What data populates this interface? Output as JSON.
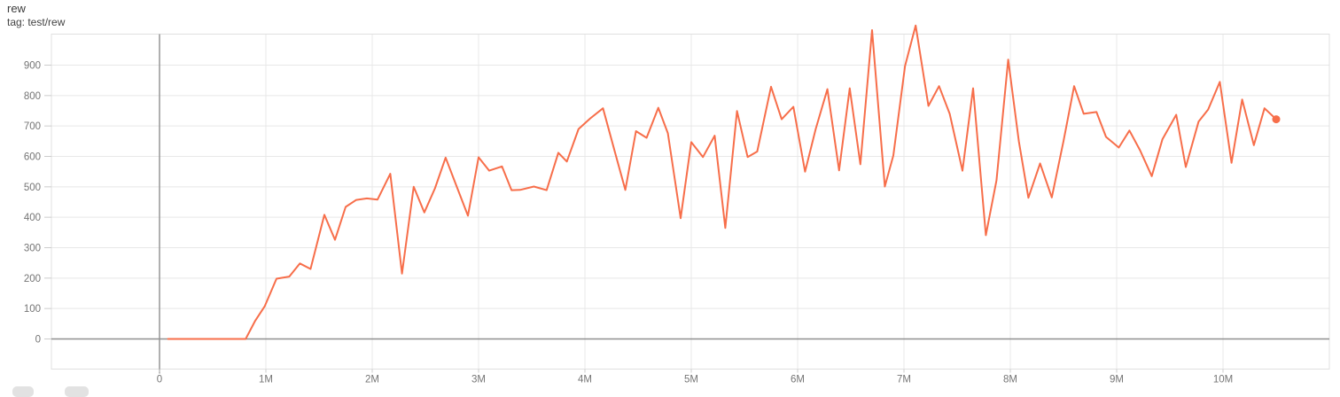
{
  "header": {
    "title": "rew",
    "subtitle": "tag: test/rew"
  },
  "colors": {
    "series": "#f76e4a",
    "axis_dark": "#8f8f8f",
    "grid_light": "#e8e8e8",
    "plot_border": "#e0e0e0",
    "tick_mark": "#cccccc",
    "tick_label": "#757575"
  },
  "chart_data": {
    "type": "line",
    "title": "rew",
    "tag": "test/rew",
    "legend_position": "none",
    "grid": true,
    "xlabel": "",
    "ylabel": "",
    "x_ticks": [
      {
        "label": "0",
        "value": 0
      },
      {
        "label": "1M",
        "value": 1
      },
      {
        "label": "2M",
        "value": 2
      },
      {
        "label": "3M",
        "value": 3
      },
      {
        "label": "4M",
        "value": 4
      },
      {
        "label": "5M",
        "value": 5
      },
      {
        "label": "6M",
        "value": 6
      },
      {
        "label": "7M",
        "value": 7
      },
      {
        "label": "8M",
        "value": 8
      },
      {
        "label": "9M",
        "value": 9
      },
      {
        "label": "10M",
        "value": 10
      }
    ],
    "y_ticks": [
      {
        "label": "0",
        "value": 0
      },
      {
        "label": "100",
        "value": 100
      },
      {
        "label": "200",
        "value": 200
      },
      {
        "label": "300",
        "value": 300
      },
      {
        "label": "400",
        "value": 400
      },
      {
        "label": "500",
        "value": 500
      },
      {
        "label": "600",
        "value": 600
      },
      {
        "label": "700",
        "value": 700
      },
      {
        "label": "800",
        "value": 800
      },
      {
        "label": "900",
        "value": 900
      }
    ],
    "xlim": [
      -1.02,
      11.0
    ],
    "ylim": [
      -99,
      1002
    ],
    "series": [
      {
        "name": "test/rew",
        "color": "#f76e4a",
        "end_marker": true,
        "points": [
          [
            0.08,
            0
          ],
          [
            0.2,
            0
          ],
          [
            0.3,
            0
          ],
          [
            0.4,
            0
          ],
          [
            0.5,
            0
          ],
          [
            0.6,
            0
          ],
          [
            0.7,
            0
          ],
          [
            0.81,
            0
          ],
          [
            0.9,
            60
          ],
          [
            0.99,
            108
          ],
          [
            1.1,
            198
          ],
          [
            1.22,
            205
          ],
          [
            1.32,
            248
          ],
          [
            1.42,
            230
          ],
          [
            1.55,
            408
          ],
          [
            1.65,
            326
          ],
          [
            1.75,
            434
          ],
          [
            1.85,
            457
          ],
          [
            1.95,
            462
          ],
          [
            2.05,
            458
          ],
          [
            2.17,
            543
          ],
          [
            2.28,
            215
          ],
          [
            2.39,
            500
          ],
          [
            2.49,
            416
          ],
          [
            2.59,
            495
          ],
          [
            2.69,
            596
          ],
          [
            2.79,
            505
          ],
          [
            2.9,
            405
          ],
          [
            3.0,
            597
          ],
          [
            3.1,
            553
          ],
          [
            3.22,
            567
          ],
          [
            3.31,
            489
          ],
          [
            3.39,
            490
          ],
          [
            3.52,
            501
          ],
          [
            3.64,
            489
          ],
          [
            3.75,
            612
          ],
          [
            3.83,
            583
          ],
          [
            3.94,
            690
          ],
          [
            4.05,
            725
          ],
          [
            4.17,
            758
          ],
          [
            4.28,
            617
          ],
          [
            4.38,
            490
          ],
          [
            4.48,
            683
          ],
          [
            4.58,
            661
          ],
          [
            4.69,
            760
          ],
          [
            4.78,
            676
          ],
          [
            4.9,
            397
          ],
          [
            5.0,
            647
          ],
          [
            5.11,
            598
          ],
          [
            5.22,
            668
          ],
          [
            5.32,
            365
          ],
          [
            5.43,
            749
          ],
          [
            5.53,
            598
          ],
          [
            5.62,
            616
          ],
          [
            5.75,
            829
          ],
          [
            5.85,
            722
          ],
          [
            5.96,
            763
          ],
          [
            6.07,
            550
          ],
          [
            6.17,
            690
          ],
          [
            6.28,
            821
          ],
          [
            6.39,
            554
          ],
          [
            6.49,
            824
          ],
          [
            6.59,
            574
          ],
          [
            6.7,
            1015
          ],
          [
            6.82,
            501
          ],
          [
            6.9,
            603
          ],
          [
            7.01,
            897
          ],
          [
            7.11,
            1030
          ],
          [
            7.23,
            766
          ],
          [
            7.33,
            831
          ],
          [
            7.43,
            740
          ],
          [
            7.55,
            553
          ],
          [
            7.65,
            824
          ],
          [
            7.77,
            341
          ],
          [
            7.87,
            521
          ],
          [
            7.98,
            918
          ],
          [
            8.08,
            650
          ],
          [
            8.17,
            464
          ],
          [
            8.28,
            577
          ],
          [
            8.39,
            465
          ],
          [
            8.5,
            650
          ],
          [
            8.6,
            831
          ],
          [
            8.69,
            740
          ],
          [
            8.81,
            746
          ],
          [
            8.9,
            664
          ],
          [
            9.02,
            629
          ],
          [
            9.12,
            685
          ],
          [
            9.22,
            620
          ],
          [
            9.33,
            535
          ],
          [
            9.43,
            656
          ],
          [
            9.56,
            737
          ],
          [
            9.65,
            565
          ],
          [
            9.77,
            714
          ],
          [
            9.86,
            754
          ],
          [
            9.97,
            845
          ],
          [
            10.08,
            579
          ],
          [
            10.18,
            787
          ],
          [
            10.29,
            637
          ],
          [
            10.39,
            758
          ],
          [
            10.5,
            722
          ]
        ]
      }
    ]
  }
}
